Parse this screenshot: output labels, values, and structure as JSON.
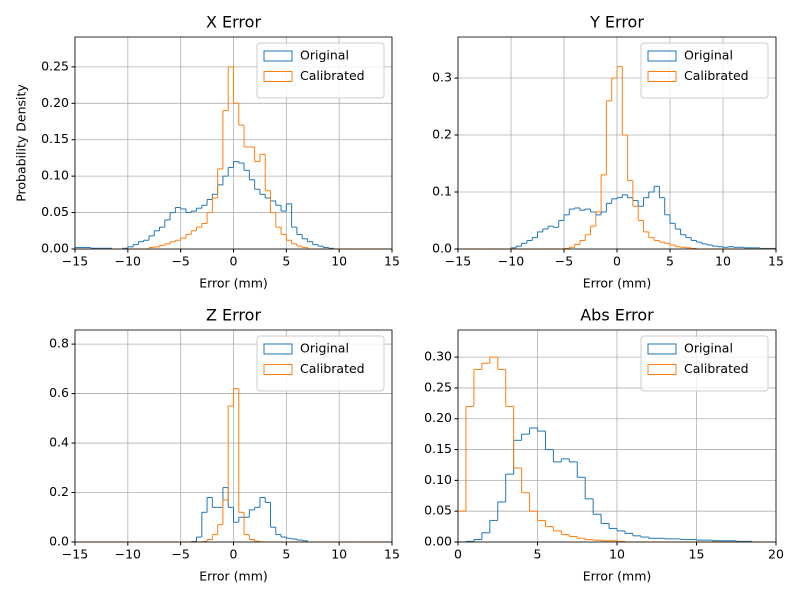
{
  "chart_data": [
    {
      "type": "histogram",
      "title": "X Error",
      "xlabel": "Error (mm)",
      "ylabel": "Probability Density",
      "bins": [
        -15,
        -14.5,
        -14,
        -13.5,
        -13,
        -12.5,
        -12,
        -11.5,
        -11,
        -10.5,
        -10,
        -9.5,
        -9,
        -8.5,
        -8,
        -7.5,
        -7,
        -6.5,
        -6,
        -5.5,
        -5,
        -4.5,
        -4,
        -3.5,
        -3,
        -2.5,
        -2,
        -1.5,
        -1,
        -0.5,
        0,
        0.5,
        1,
        1.5,
        2,
        2.5,
        3,
        3.5,
        4,
        4.5,
        5,
        5.5,
        6,
        6.5,
        7,
        7.5,
        8,
        8.5,
        9,
        9.5,
        10,
        10.5,
        11,
        11.5,
        12,
        12.5,
        13,
        13.5,
        14,
        14.5,
        15
      ],
      "series": [
        {
          "name": "Original",
          "color": "#1f77b4",
          "values": [
            0.002,
            0.002,
            0.002,
            0.001,
            0.001,
            0.001,
            0.001,
            0,
            0,
            0.001,
            0.003,
            0.006,
            0.01,
            0.012,
            0.018,
            0.025,
            0.03,
            0.04,
            0.05,
            0.057,
            0.055,
            0.05,
            0.052,
            0.056,
            0.06,
            0.068,
            0.075,
            0.088,
            0.1,
            0.112,
            0.12,
            0.118,
            0.108,
            0.095,
            0.082,
            0.075,
            0.07,
            0.066,
            0.06,
            0.052,
            0.062,
            0.03,
            0.02,
            0.014,
            0.01,
            0.006,
            0.004,
            0.002,
            0.001,
            0,
            0,
            0,
            0,
            0,
            0,
            0,
            0,
            0,
            0,
            0
          ]
        },
        {
          "name": "Calibrated",
          "color": "#ff7f0e",
          "values": [
            0,
            0,
            0,
            0,
            0,
            0,
            0,
            0,
            0,
            0,
            0,
            0,
            0,
            0,
            0.002,
            0.003,
            0.005,
            0.007,
            0.01,
            0.012,
            0.015,
            0.02,
            0.025,
            0.03,
            0.035,
            0.05,
            0.07,
            0.11,
            0.19,
            0.25,
            0.2,
            0.17,
            0.14,
            0.14,
            0.12,
            0.13,
            0.08,
            0.05,
            0.03,
            0.02,
            0.012,
            0.007,
            0.004,
            0.002,
            0,
            0,
            0,
            0,
            0,
            0,
            0,
            0,
            0,
            0,
            0,
            0,
            0,
            0,
            0,
            0
          ]
        }
      ],
      "xlim": [
        -15,
        15
      ],
      "ylim": [
        0,
        0.291
      ],
      "xticks": [
        {
          "value": -15,
          "label": "−15"
        },
        {
          "value": -10,
          "label": "−10"
        },
        {
          "value": -5,
          "label": "−5"
        },
        0,
        5,
        10,
        15
      ],
      "yticks": [
        {
          "value": 0,
          "label": "0.00"
        },
        {
          "value": 0.05,
          "label": "0.05"
        },
        {
          "value": 0.1,
          "label": "0.10"
        },
        {
          "value": 0.15,
          "label": "0.15"
        },
        {
          "value": 0.2,
          "label": "0.20"
        },
        {
          "value": 0.25,
          "label": "0.25"
        }
      ],
      "grid": true,
      "legend": "upper right"
    },
    {
      "type": "histogram",
      "title": "Y Error",
      "xlabel": "Error (mm)",
      "bins": [
        -15,
        -14.5,
        -14,
        -13.5,
        -13,
        -12.5,
        -12,
        -11.5,
        -11,
        -10.5,
        -10,
        -9.5,
        -9,
        -8.5,
        -8,
        -7.5,
        -7,
        -6.5,
        -6,
        -5.5,
        -5,
        -4.5,
        -4,
        -3.5,
        -3,
        -2.5,
        -2,
        -1.5,
        -1,
        -0.5,
        0,
        0.5,
        1,
        1.5,
        2,
        2.5,
        3,
        3.5,
        4,
        4.5,
        5,
        5.5,
        6,
        6.5,
        7,
        7.5,
        8,
        8.5,
        9,
        9.5,
        10,
        10.5,
        11,
        11.5,
        12,
        12.5,
        13,
        13.5,
        14,
        14.5,
        15
      ],
      "series": [
        {
          "name": "Original",
          "color": "#1f77b4",
          "values": [
            0,
            0,
            0,
            0,
            0,
            0,
            0,
            0,
            0,
            0,
            0.002,
            0.005,
            0.01,
            0.015,
            0.02,
            0.03,
            0.035,
            0.04,
            0.038,
            0.05,
            0.06,
            0.07,
            0.072,
            0.068,
            0.07,
            0.065,
            0.06,
            0.065,
            0.08,
            0.088,
            0.09,
            0.095,
            0.09,
            0.085,
            0.075,
            0.09,
            0.1,
            0.11,
            0.09,
            0.06,
            0.045,
            0.035,
            0.025,
            0.02,
            0.015,
            0.012,
            0.009,
            0.007,
            0.005,
            0.004,
            0.003,
            0.004,
            0.003,
            0.003,
            0.002,
            0.002,
            0.002,
            0.001,
            0.001,
            0.001
          ]
        },
        {
          "name": "Calibrated",
          "color": "#ff7f0e",
          "values": [
            0,
            0,
            0,
            0,
            0,
            0,
            0,
            0,
            0,
            0,
            0,
            0,
            0,
            0,
            0,
            0,
            0,
            0,
            0,
            0,
            0.001,
            0.003,
            0.008,
            0.015,
            0.025,
            0.04,
            0.065,
            0.13,
            0.26,
            0.3,
            0.32,
            0.2,
            0.12,
            0.075,
            0.05,
            0.03,
            0.02,
            0.015,
            0.012,
            0.01,
            0.007,
            0.004,
            0.003,
            0.002,
            0.001,
            0,
            0,
            0,
            0,
            0,
            0,
            0,
            0,
            0,
            0,
            0,
            0,
            0,
            0,
            0
          ]
        }
      ],
      "xlim": [
        -15,
        15
      ],
      "ylim": [
        0,
        0.372
      ],
      "xticks": [
        {
          "value": -15,
          "label": "−15"
        },
        {
          "value": -10,
          "label": "−10"
        },
        {
          "value": -5,
          "label": "−5"
        },
        0,
        5,
        10,
        15
      ],
      "yticks": [
        {
          "value": 0,
          "label": "0.0"
        },
        0.1,
        0.2,
        0.3
      ],
      "grid": true,
      "legend": "upper right"
    },
    {
      "type": "histogram",
      "title": "Z Error",
      "xlabel": "Error (mm)",
      "bins": [
        -15,
        -14.5,
        -14,
        -13.5,
        -13,
        -12.5,
        -12,
        -11.5,
        -11,
        -10.5,
        -10,
        -9.5,
        -9,
        -8.5,
        -8,
        -7.5,
        -7,
        -6.5,
        -6,
        -5.5,
        -5,
        -4.5,
        -4,
        -3.5,
        -3,
        -2.5,
        -2,
        -1.5,
        -1,
        -0.5,
        0,
        0.5,
        1,
        1.5,
        2,
        2.5,
        3,
        3.5,
        4,
        4.5,
        5,
        5.5,
        6,
        6.5,
        7,
        7.5,
        8,
        8.5,
        9,
        9.5,
        10,
        10.5,
        11,
        11.5,
        12,
        12.5,
        13,
        13.5,
        14,
        14.5,
        15
      ],
      "series": [
        {
          "name": "Original",
          "color": "#1f77b4",
          "values": [
            0,
            0,
            0,
            0,
            0,
            0,
            0,
            0,
            0,
            0,
            0,
            0,
            0,
            0,
            0,
            0,
            0,
            0,
            0,
            0,
            0,
            0,
            0.002,
            0.02,
            0.12,
            0.18,
            0.14,
            0.14,
            0.22,
            0.14,
            0.08,
            0.1,
            0.1,
            0.13,
            0.14,
            0.18,
            0.16,
            0.06,
            0.03,
            0.02,
            0.015,
            0.012,
            0.008,
            0.005,
            0,
            0,
            0,
            0,
            0,
            0,
            0,
            0,
            0,
            0,
            0,
            0,
            0,
            0,
            0,
            0
          ]
        },
        {
          "name": "Calibrated",
          "color": "#ff7f0e",
          "values": [
            0,
            0,
            0,
            0,
            0,
            0,
            0,
            0,
            0,
            0,
            0,
            0,
            0,
            0,
            0,
            0,
            0,
            0,
            0,
            0,
            0,
            0,
            0,
            0,
            0.002,
            0.01,
            0.03,
            0.07,
            0.17,
            0.55,
            0.62,
            0.12,
            0.03,
            0.01,
            0.003,
            0,
            0,
            0,
            0,
            0,
            0,
            0,
            0,
            0,
            0,
            0,
            0,
            0,
            0,
            0,
            0,
            0,
            0,
            0,
            0,
            0,
            0,
            0,
            0,
            0
          ]
        }
      ],
      "xlim": [
        -15,
        15
      ],
      "ylim": [
        0,
        0.857
      ],
      "xticks": [
        {
          "value": -15,
          "label": "−15"
        },
        {
          "value": -10,
          "label": "−10"
        },
        {
          "value": -5,
          "label": "−5"
        },
        0,
        5,
        10,
        15
      ],
      "yticks": [
        {
          "value": 0,
          "label": "0.0"
        },
        0.2,
        0.4,
        0.6,
        0.8
      ],
      "grid": true,
      "legend": "upper right"
    },
    {
      "type": "histogram",
      "title": "Abs Error",
      "xlabel": "Error (mm)",
      "bins": [
        0,
        0.5,
        1,
        1.5,
        2,
        2.5,
        3,
        3.5,
        4,
        4.5,
        5,
        5.5,
        6,
        6.5,
        7,
        7.5,
        8,
        8.5,
        9,
        9.5,
        10,
        10.5,
        11,
        11.5,
        12,
        12.5,
        13,
        13.5,
        14,
        14.5,
        15,
        15.5,
        16,
        16.5,
        17,
        17.5,
        18,
        18.5,
        19,
        19.5,
        20
      ],
      "series": [
        {
          "name": "Original",
          "color": "#1f77b4",
          "values": [
            0,
            0.001,
            0.004,
            0.015,
            0.035,
            0.065,
            0.11,
            0.165,
            0.175,
            0.185,
            0.18,
            0.15,
            0.13,
            0.135,
            0.13,
            0.105,
            0.07,
            0.045,
            0.03,
            0.022,
            0.018,
            0.014,
            0.01,
            0.008,
            0.006,
            0.006,
            0.005,
            0.005,
            0.004,
            0.004,
            0.003,
            0.003,
            0.002,
            0.002,
            0.002,
            0.001,
            0.001,
            0,
            0,
            0
          ]
        },
        {
          "name": "Calibrated",
          "color": "#ff7f0e",
          "values": [
            0.05,
            0.22,
            0.28,
            0.29,
            0.3,
            0.28,
            0.22,
            0.12,
            0.08,
            0.05,
            0.035,
            0.025,
            0.018,
            0.012,
            0.009,
            0.006,
            0.004,
            0.003,
            0.002,
            0.002,
            0.001,
            0,
            0,
            0,
            0,
            0,
            0,
            0,
            0,
            0,
            0,
            0,
            0,
            0,
            0,
            0,
            0,
            0,
            0,
            0
          ]
        }
      ],
      "xlim": [
        0,
        20
      ],
      "ylim": [
        0,
        0.344
      ],
      "xticks": [
        0,
        5,
        10,
        15,
        20
      ],
      "yticks": [
        {
          "value": 0,
          "label": "0.00"
        },
        {
          "value": 0.05,
          "label": "0.05"
        },
        {
          "value": 0.1,
          "label": "0.10"
        },
        {
          "value": 0.15,
          "label": "0.15"
        },
        {
          "value": 0.2,
          "label": "0.20"
        },
        {
          "value": 0.25,
          "label": "0.25"
        },
        {
          "value": 0.3,
          "label": "0.30"
        }
      ],
      "grid": true,
      "legend": "upper right"
    }
  ]
}
